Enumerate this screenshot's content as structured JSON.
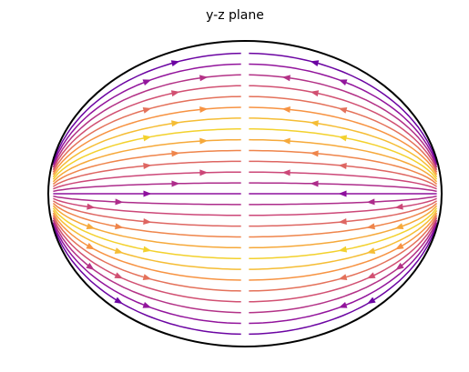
{
  "chart_data": {
    "type": "streamplot",
    "title": "y-z plane"
  }
}
